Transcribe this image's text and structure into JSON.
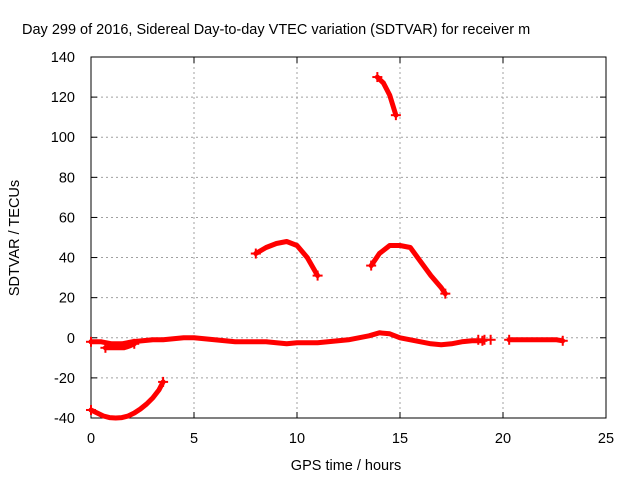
{
  "chart_data": {
    "type": "scatter",
    "title": "Day 299 of 2016, Sidereal Day-to-day VTEC variation (SDTVAR) for receiver m",
    "xlabel": "GPS time / hours",
    "ylabel": "SDTVAR / TECUs",
    "xlim": [
      0,
      25
    ],
    "ylim": [
      -40,
      140
    ],
    "xticks": [
      0,
      5,
      10,
      15,
      20,
      25
    ],
    "yticks": [
      -40,
      -20,
      0,
      20,
      40,
      60,
      80,
      100,
      120,
      140
    ],
    "grid": true,
    "marker": "plus",
    "series_color": "#ff0000",
    "series": [
      {
        "segments": [
          [
            [
              0.0,
              -36
            ],
            [
              0.3,
              -37.5
            ],
            [
              0.6,
              -39
            ],
            [
              0.9,
              -39.8
            ],
            [
              1.2,
              -40
            ],
            [
              1.5,
              -39.8
            ],
            [
              1.8,
              -39
            ],
            [
              2.1,
              -37.5
            ],
            [
              2.4,
              -35.5
            ],
            [
              2.7,
              -33
            ],
            [
              3.0,
              -30
            ],
            [
              3.3,
              -26
            ],
            [
              3.5,
              -22
            ]
          ],
          [
            [
              0.0,
              -2
            ],
            [
              0.5,
              -2
            ],
            [
              1.0,
              -3
            ],
            [
              1.5,
              -3
            ],
            [
              2.0,
              -2
            ],
            [
              2.5,
              -1.5
            ],
            [
              3.0,
              -1
            ],
            [
              3.5,
              -1
            ],
            [
              4.0,
              -0.5
            ],
            [
              4.5,
              0
            ],
            [
              5.0,
              0
            ],
            [
              5.5,
              -0.5
            ],
            [
              6.0,
              -1
            ],
            [
              6.5,
              -1.5
            ],
            [
              7.0,
              -2
            ],
            [
              7.5,
              -2
            ],
            [
              8.0,
              -2
            ],
            [
              8.5,
              -2
            ],
            [
              9.0,
              -2.5
            ],
            [
              9.5,
              -3
            ],
            [
              10.0,
              -2.5
            ],
            [
              10.5,
              -2.5
            ],
            [
              11.0,
              -2.5
            ],
            [
              11.5,
              -2
            ],
            [
              12.0,
              -1.5
            ],
            [
              12.5,
              -1
            ],
            [
              13.0,
              0
            ],
            [
              13.5,
              1
            ],
            [
              14.0,
              2.5
            ],
            [
              14.5,
              2
            ],
            [
              15.0,
              0
            ],
            [
              15.5,
              -1
            ],
            [
              16.0,
              -2
            ],
            [
              16.5,
              -3
            ],
            [
              17.0,
              -3.5
            ],
            [
              17.5,
              -3
            ],
            [
              18.0,
              -2
            ],
            [
              18.5,
              -1.5
            ],
            [
              19.0,
              -1.5
            ]
          ],
          [
            [
              0.7,
              -5
            ],
            [
              1.0,
              -5
            ],
            [
              1.3,
              -5
            ],
            [
              1.6,
              -5
            ],
            [
              1.9,
              -4
            ],
            [
              2.1,
              -3
            ]
          ],
          [
            [
              8.0,
              42
            ],
            [
              8.5,
              45
            ],
            [
              9.0,
              47
            ],
            [
              9.5,
              48
            ],
            [
              10.0,
              46
            ],
            [
              10.5,
              40
            ],
            [
              11.0,
              31
            ]
          ],
          [
            [
              13.6,
              36
            ],
            [
              14.0,
              42
            ],
            [
              14.5,
              46
            ],
            [
              15.0,
              46
            ],
            [
              15.5,
              45
            ],
            [
              16.0,
              38
            ],
            [
              16.5,
              31
            ],
            [
              17.0,
              25
            ],
            [
              17.2,
              22
            ]
          ],
          [
            [
              13.9,
              130
            ],
            [
              14.2,
              127
            ],
            [
              14.5,
              121
            ],
            [
              14.8,
              111
            ]
          ],
          [
            [
              20.3,
              -1
            ],
            [
              20.7,
              -1
            ],
            [
              21.5,
              -1
            ],
            [
              22.0,
              -1
            ],
            [
              22.6,
              -1
            ],
            [
              22.9,
              -1.5
            ]
          ]
        ],
        "isolated_points": [
          [
            18.8,
            -1
          ],
          [
            19.1,
            -1
          ],
          [
            19.4,
            -1
          ]
        ]
      }
    ]
  }
}
